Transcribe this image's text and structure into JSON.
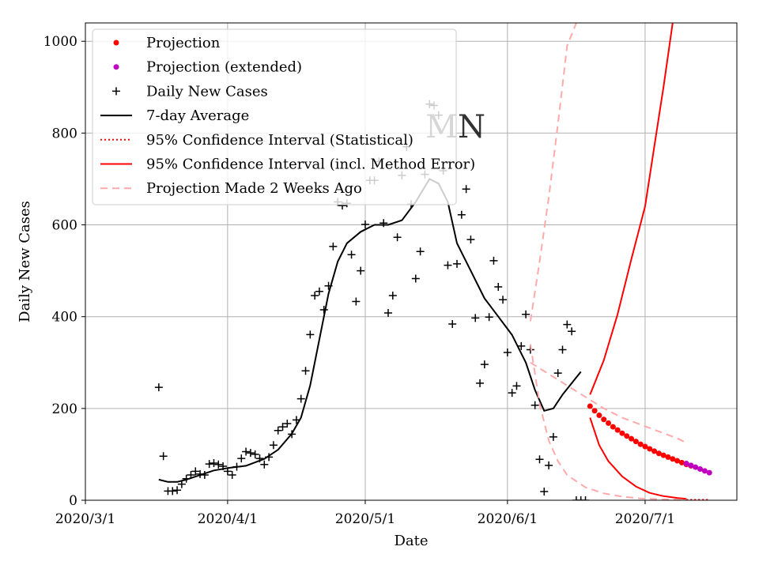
{
  "chart_data": {
    "type": "scatter",
    "title": "",
    "watermark": "MN",
    "xlabel": "Date",
    "ylabel": "Daily New Cases",
    "x_ticks": [
      "2020/3/1",
      "2020/4/1",
      "2020/5/1",
      "2020/6/1",
      "2020/7/1"
    ],
    "y_ticks": [
      0,
      200,
      400,
      600,
      800,
      1000
    ],
    "xlim": [
      "2020-03-01",
      "2020-07-21"
    ],
    "ylim": [
      0,
      1040
    ],
    "grid": true,
    "legend_position": "top-left",
    "colors": {
      "projection": "#ff0000",
      "projection_extended": "#bf00bf",
      "daily": "#000000",
      "average": "#000000",
      "ci": "#ff0000",
      "old_projection": "#ffaaaa"
    },
    "legend": [
      {
        "label": "Projection",
        "style": "red-dot"
      },
      {
        "label": "Projection (extended)",
        "style": "magenta-dot"
      },
      {
        "label": "Daily New Cases",
        "style": "black-plus"
      },
      {
        "label": "7-day Average",
        "style": "black-line"
      },
      {
        "label": "95% Confidence Interval (Statistical)",
        "style": "red-dotted"
      },
      {
        "label": "95% Confidence Interval (incl. Method Error)",
        "style": "red-solid"
      },
      {
        "label": "Projection Made 2 Weeks Ago",
        "style": "pink-dashed"
      }
    ],
    "series": [
      {
        "name": "Daily New Cases",
        "kind": "scatter-plus",
        "x": [
          "2020-03-17",
          "2020-03-18",
          "2020-03-19",
          "2020-03-20",
          "2020-03-21",
          "2020-03-22",
          "2020-03-23",
          "2020-03-24",
          "2020-03-25",
          "2020-03-26",
          "2020-03-27",
          "2020-03-28",
          "2020-03-29",
          "2020-03-30",
          "2020-03-31",
          "2020-04-01",
          "2020-04-02",
          "2020-04-03",
          "2020-04-04",
          "2020-04-05",
          "2020-04-06",
          "2020-04-07",
          "2020-04-08",
          "2020-04-09",
          "2020-04-10",
          "2020-04-11",
          "2020-04-12",
          "2020-04-13",
          "2020-04-14",
          "2020-04-15",
          "2020-04-16",
          "2020-04-17",
          "2020-04-18",
          "2020-04-19",
          "2020-04-20",
          "2020-04-21",
          "2020-04-22",
          "2020-04-23",
          "2020-04-24",
          "2020-04-25",
          "2020-04-26",
          "2020-04-27",
          "2020-04-28",
          "2020-04-29",
          "2020-04-30",
          "2020-05-01",
          "2020-05-02",
          "2020-05-03",
          "2020-05-04",
          "2020-05-05",
          "2020-05-06",
          "2020-05-07",
          "2020-05-08",
          "2020-05-09",
          "2020-05-10",
          "2020-05-11",
          "2020-05-12",
          "2020-05-13",
          "2020-05-14",
          "2020-05-15",
          "2020-05-16",
          "2020-05-17",
          "2020-05-18",
          "2020-05-19",
          "2020-05-20",
          "2020-05-21",
          "2020-05-22",
          "2020-05-23",
          "2020-05-24",
          "2020-05-25",
          "2020-05-26",
          "2020-05-27",
          "2020-05-28",
          "2020-05-29",
          "2020-05-30",
          "2020-05-31",
          "2020-06-01",
          "2020-06-02",
          "2020-06-03",
          "2020-06-04",
          "2020-06-05",
          "2020-06-06",
          "2020-06-07",
          "2020-06-08",
          "2020-06-09",
          "2020-06-10",
          "2020-06-11",
          "2020-06-12",
          "2020-06-13",
          "2020-06-14",
          "2020-06-15",
          "2020-06-16",
          "2020-06-17",
          "2020-06-18"
        ],
        "y": [
          246,
          96,
          20,
          20,
          22,
          35,
          47,
          55,
          63,
          57,
          55,
          79,
          81,
          78,
          74,
          63,
          55,
          73,
          91,
          106,
          103,
          100,
          91,
          78,
          94,
          120,
          152,
          160,
          167,
          144,
          175,
          221,
          282,
          361,
          446,
          455,
          415,
          467,
          553,
          650,
          642,
          647,
          535,
          433,
          500,
          601,
          697,
          697,
          738,
          604,
          408,
          446,
          573,
          708,
          770,
          645,
          483,
          542,
          710,
          863,
          860,
          839,
          718,
          512,
          384,
          515,
          622,
          678,
          568,
          397,
          255,
          296,
          399,
          522,
          465,
          437,
          322,
          234,
          249,
          336,
          405,
          328,
          207,
          89,
          19,
          76,
          138,
          277,
          328,
          383,
          368,
          0,
          0,
          0
        ]
      },
      {
        "name": "7-day Average",
        "kind": "line",
        "x": [
          "2020-03-17",
          "2020-03-19",
          "2020-03-21",
          "2020-03-23",
          "2020-03-26",
          "2020-03-29",
          "2020-04-01",
          "2020-04-05",
          "2020-04-09",
          "2020-04-12",
          "2020-04-15",
          "2020-04-17",
          "2020-04-19",
          "2020-04-21",
          "2020-04-23",
          "2020-04-25",
          "2020-04-27",
          "2020-04-30",
          "2020-05-03",
          "2020-05-06",
          "2020-05-09",
          "2020-05-12",
          "2020-05-15",
          "2020-05-17",
          "2020-05-19",
          "2020-05-21",
          "2020-05-24",
          "2020-05-27",
          "2020-05-30",
          "2020-06-02",
          "2020-06-05",
          "2020-06-07",
          "2020-06-09",
          "2020-06-11",
          "2020-06-13",
          "2020-06-15",
          "2020-06-17"
        ],
        "y": [
          45,
          40,
          40,
          45,
          55,
          65,
          70,
          75,
          90,
          110,
          145,
          180,
          250,
          350,
          450,
          520,
          560,
          585,
          600,
          600,
          610,
          650,
          700,
          690,
          650,
          560,
          500,
          440,
          400,
          360,
          300,
          240,
          195,
          200,
          230,
          255,
          280
        ]
      },
      {
        "name": "Projection",
        "kind": "scatter-dot",
        "x": [
          "2020-06-19",
          "2020-06-20",
          "2020-06-21",
          "2020-06-22",
          "2020-06-23",
          "2020-06-24",
          "2020-06-25",
          "2020-06-26",
          "2020-06-27",
          "2020-06-28",
          "2020-06-29",
          "2020-06-30",
          "2020-07-01",
          "2020-07-02",
          "2020-07-03",
          "2020-07-04",
          "2020-07-05",
          "2020-07-06",
          "2020-07-07",
          "2020-07-08",
          "2020-07-09",
          "2020-07-10",
          "2020-07-11"
        ],
        "y": [
          205,
          195,
          185,
          176,
          168,
          160,
          153,
          146,
          140,
          134,
          128,
          122,
          117,
          112,
          107,
          102,
          98,
          94,
          90,
          86,
          82,
          78,
          75
        ]
      },
      {
        "name": "Projection (extended)",
        "kind": "scatter-dot",
        "x": [
          "2020-07-10",
          "2020-07-11",
          "2020-07-12",
          "2020-07-13",
          "2020-07-14",
          "2020-07-15"
        ],
        "y": [
          80,
          76,
          72,
          68,
          64,
          60
        ]
      },
      {
        "name": "95% Confidence Interval (incl. Method Error)",
        "kind": "line",
        "x": [
          "2020-06-19",
          "2020-06-22",
          "2020-06-25",
          "2020-06-28",
          "2020-07-01",
          "2020-07-03",
          "2020-07-05",
          "2020-07-07"
        ],
        "y": [
          230,
          305,
          405,
          525,
          640,
          770,
          900,
          1040
        ]
      },
      {
        "name": "95% Confidence Interval (incl. Method Error)",
        "kind": "line",
        "x": [
          "2020-06-19",
          "2020-06-21",
          "2020-06-23",
          "2020-06-26",
          "2020-06-29",
          "2020-07-02",
          "2020-07-05",
          "2020-07-08",
          "2020-07-10"
        ],
        "y": [
          180,
          120,
          85,
          52,
          30,
          16,
          9,
          5,
          3
        ]
      },
      {
        "name": "Projection Made 2 Weeks Ago",
        "kind": "line",
        "x": [
          "2020-06-06",
          "2020-06-08",
          "2020-06-10",
          "2020-06-12",
          "2020-06-14",
          "2020-06-16"
        ],
        "y": [
          390,
          520,
          660,
          820,
          990,
          1040
        ]
      },
      {
        "name": "Projection Made 2 Weeks Ago",
        "kind": "line",
        "x": [
          "2020-06-06",
          "2020-06-10",
          "2020-06-14",
          "2020-06-18",
          "2020-06-22",
          "2020-06-26",
          "2020-06-30",
          "2020-07-04",
          "2020-07-08",
          "2020-07-10"
        ],
        "y": [
          300,
          275,
          250,
          225,
          200,
          180,
          165,
          150,
          135,
          125
        ]
      },
      {
        "name": "Projection Made 2 Weeks Ago",
        "kind": "line",
        "x": [
          "2020-06-06",
          "2020-06-08",
          "2020-06-10",
          "2020-06-12",
          "2020-06-14",
          "2020-06-18",
          "2020-06-22",
          "2020-06-26",
          "2020-06-30",
          "2020-07-04",
          "2020-07-10"
        ],
        "y": [
          340,
          210,
          130,
          85,
          55,
          28,
          15,
          8,
          4,
          2,
          1
        ]
      },
      {
        "name": "95% Confidence Interval (Statistical)",
        "kind": "line",
        "x": [
          "2020-07-10",
          "2020-07-15"
        ],
        "y": [
          1,
          1
        ]
      }
    ]
  }
}
